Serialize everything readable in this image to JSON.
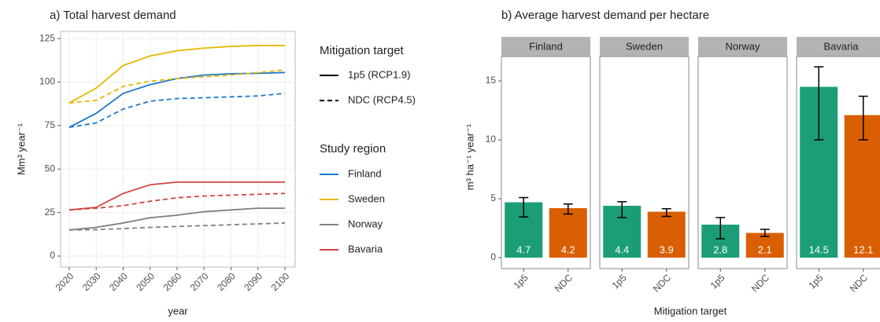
{
  "chart_data": [
    {
      "type": "line",
      "title": "a) Total harvest demand",
      "xlabel": "year",
      "ylabel": "Mm³ year⁻¹",
      "x": [
        2020,
        2030,
        2040,
        2050,
        2060,
        2070,
        2080,
        2090,
        2100
      ],
      "xlim": [
        2016.8,
        2103.8
      ],
      "xticks": [
        2020,
        2030,
        2040,
        2050,
        2060,
        2070,
        2080,
        2090,
        2100
      ],
      "ylim": [
        -6.3,
        129.1
      ],
      "yticks": [
        0,
        25,
        50,
        75,
        100,
        125
      ],
      "grid": true,
      "linetype_legend": {
        "title": "Mitigation target",
        "entries": [
          {
            "label": "1p5 (RCP1.9)",
            "dash": "none"
          },
          {
            "label": "NDC (RCP4.5)",
            "dash": "6,4"
          }
        ]
      },
      "color_legend_title": "Study region",
      "series": [
        {
          "name": "Finland",
          "color": "#1f78c8",
          "lines": [
            {
              "values": [
                74,
                82,
                93.5,
                98.5,
                102,
                104,
                104.8,
                105,
                105.5
              ]
            },
            {
              "values": [
                74,
                76.5,
                84.5,
                89,
                90.5,
                91,
                91.5,
                92,
                93.5
              ]
            }
          ]
        },
        {
          "name": "Sweden",
          "color": "#e6b800",
          "lines": [
            {
              "values": [
                88,
                96.5,
                109.5,
                115,
                118,
                119.5,
                120.5,
                121,
                121
              ]
            },
            {
              "values": [
                88,
                89.5,
                97.5,
                100.5,
                102,
                103,
                104,
                105.5,
                107
              ]
            }
          ]
        },
        {
          "name": "Norway",
          "color": "#808080",
          "lines": [
            {
              "values": [
                15,
                16.5,
                19,
                22,
                23.5,
                25.5,
                26.5,
                27.5,
                27.5
              ]
            },
            {
              "values": [
                15,
                15.2,
                15.8,
                16.5,
                17,
                17.5,
                18,
                18.5,
                19
              ]
            }
          ]
        },
        {
          "name": "Bavaria",
          "color": "#d0453f",
          "lines": [
            {
              "values": [
                26.5,
                28,
                36,
                41,
                42.5,
                42.5,
                42.5,
                42.5,
                42.5
              ]
            },
            {
              "values": [
                26.5,
                27.5,
                29,
                31.5,
                33.5,
                34.5,
                35,
                35.5,
                36
              ]
            }
          ]
        }
      ]
    },
    {
      "type": "bar",
      "title": "b) Average harvest demand per hectare",
      "xlabel": "Mitigation target",
      "ylabel": "m³ ha⁻¹ year⁻¹",
      "categories": [
        "1p5",
        "NDC"
      ],
      "colors": [
        "#1b9e77",
        "#d95f02"
      ],
      "ylim": [
        -0.93,
        17.07
      ],
      "yticks": [
        0,
        5,
        10,
        15
      ],
      "facets": [
        {
          "name": "Finland",
          "values": [
            4.7,
            4.2
          ],
          "err_low": [
            3.45,
            3.7
          ],
          "err_high": [
            5.1,
            4.55
          ]
        },
        {
          "name": "Sweden",
          "values": [
            4.4,
            3.9
          ],
          "err_low": [
            3.4,
            3.5
          ],
          "err_high": [
            4.75,
            4.15
          ]
        },
        {
          "name": "Norway",
          "values": [
            2.8,
            2.1
          ],
          "err_low": [
            1.6,
            1.8
          ],
          "err_high": [
            3.4,
            2.4
          ]
        },
        {
          "name": "Bavaria",
          "values": [
            14.5,
            12.1
          ],
          "err_low": [
            10,
            10
          ],
          "err_high": [
            16.2,
            13.7
          ]
        }
      ]
    }
  ]
}
